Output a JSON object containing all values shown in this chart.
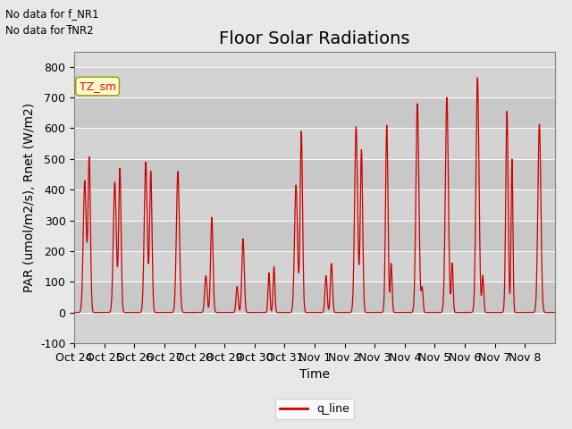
{
  "title": "Floor Solar Radiations",
  "ylabel": "PAR (umol/m2/s), Rnet (W/m2)",
  "xlabel": "Time",
  "ylim": [
    -100,
    850
  ],
  "yticks": [
    -100,
    0,
    100,
    200,
    300,
    400,
    500,
    600,
    700,
    800
  ],
  "x_tick_labels": [
    "Oct 24",
    "Oct 25",
    "Oct 26",
    "Oct 27",
    "Oct 28",
    "Oct 29",
    "Oct 30",
    "Oct 31",
    "Nov 1",
    "Nov 2",
    "Nov 3",
    "Nov 4",
    "Nov 5",
    "Nov 6",
    "Nov 7",
    "Nov 8"
  ],
  "no_data_text1": "No data for f_NR1",
  "no_data_text2": "No data for f̅NR2",
  "legend_label": "TZ_sm",
  "line_label": "q_line",
  "line_color": "#cc0000",
  "background_color": "#e8e8e8",
  "title_fontsize": 14,
  "label_fontsize": 10,
  "tick_fontsize": 9,
  "num_days": 16
}
